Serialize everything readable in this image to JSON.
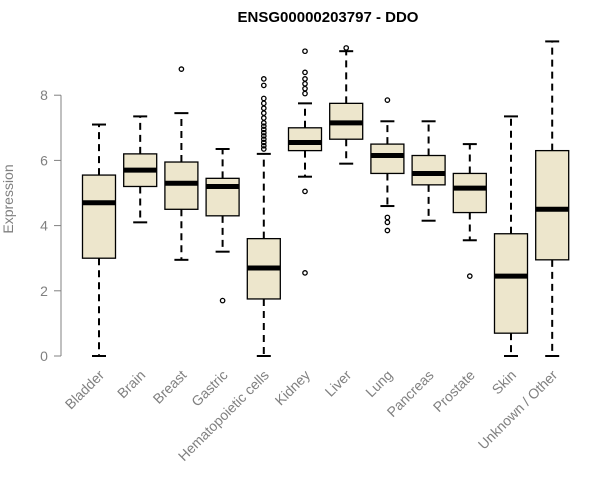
{
  "chart_data": {
    "type": "boxplot",
    "title": "ENSG00000203797 - DDO",
    "xlabel": "",
    "ylabel": "Expression",
    "ylim": [
      0,
      10
    ],
    "yticks": [
      0,
      2,
      4,
      6,
      8
    ],
    "box_fill": "#ede6cc",
    "categories": [
      "Bladder",
      "Brain",
      "Breast",
      "Gastric",
      "Hematopoietic cells",
      "Kidney",
      "Liver",
      "Lung",
      "Pancreas",
      "Prostate",
      "Skin",
      "Unknown / Other"
    ],
    "boxes": [
      {
        "whisker_low": 0.0,
        "q1": 3.0,
        "median": 4.7,
        "q3": 5.55,
        "whisker_high": 7.1,
        "outliers": []
      },
      {
        "whisker_low": 4.1,
        "q1": 5.2,
        "median": 5.7,
        "q3": 6.2,
        "whisker_high": 7.35,
        "outliers": []
      },
      {
        "whisker_low": 2.95,
        "q1": 4.5,
        "median": 5.3,
        "q3": 5.95,
        "whisker_high": 7.45,
        "outliers": [
          8.8
        ]
      },
      {
        "whisker_low": 3.2,
        "q1": 4.3,
        "median": 5.2,
        "q3": 5.45,
        "whisker_high": 6.35,
        "outliers": [
          1.7
        ]
      },
      {
        "whisker_low": 0.0,
        "q1": 1.75,
        "median": 2.7,
        "q3": 3.6,
        "whisker_high": 6.2,
        "outliers": [
          6.35,
          6.45,
          6.55,
          6.65,
          6.75,
          6.85,
          6.95,
          7.05,
          7.15,
          7.3,
          7.45,
          7.6,
          7.75,
          7.9,
          8.3,
          8.5
        ]
      },
      {
        "whisker_low": 5.5,
        "q1": 6.3,
        "median": 6.55,
        "q3": 7.0,
        "whisker_high": 7.75,
        "outliers": [
          2.55,
          5.05,
          8.05,
          8.2,
          8.35,
          8.5,
          8.7,
          9.35
        ]
      },
      {
        "whisker_low": 5.9,
        "q1": 6.65,
        "median": 7.15,
        "q3": 7.75,
        "whisker_high": 9.35,
        "outliers": [
          9.45
        ]
      },
      {
        "whisker_low": 4.6,
        "q1": 5.6,
        "median": 6.15,
        "q3": 6.5,
        "whisker_high": 7.2,
        "outliers": [
          3.85,
          4.1,
          4.25,
          7.85
        ]
      },
      {
        "whisker_low": 4.15,
        "q1": 5.25,
        "median": 5.6,
        "q3": 6.15,
        "whisker_high": 7.2,
        "outliers": []
      },
      {
        "whisker_low": 3.55,
        "q1": 4.4,
        "median": 5.15,
        "q3": 5.6,
        "whisker_high": 6.5,
        "outliers": [
          2.45
        ]
      },
      {
        "whisker_low": 0.0,
        "q1": 0.7,
        "median": 2.45,
        "q3": 3.75,
        "whisker_high": 7.35,
        "outliers": []
      },
      {
        "whisker_low": 0.0,
        "q1": 2.95,
        "median": 4.5,
        "q3": 6.3,
        "whisker_high": 9.65,
        "outliers": []
      }
    ]
  }
}
